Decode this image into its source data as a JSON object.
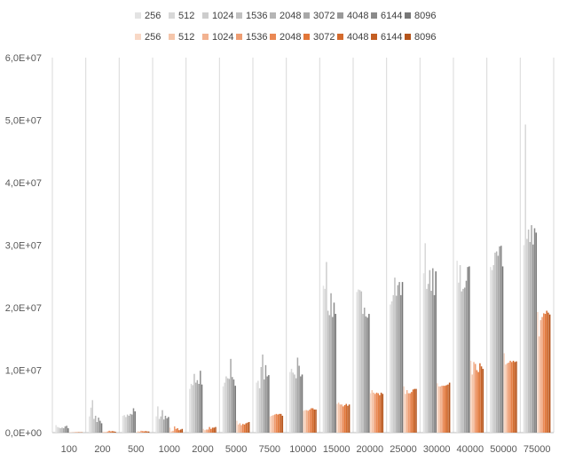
{
  "chart_data": {
    "type": "bar",
    "title": "",
    "xlabel": "",
    "ylabel": "",
    "ylim": [
      0,
      60000000
    ],
    "yticks": [
      0,
      10000000,
      20000000,
      30000000,
      40000000,
      50000000,
      60000000
    ],
    "ytick_labels": [
      "0,0E+00",
      "1,0E+07",
      "2,0E+07",
      "3,0E+07",
      "4,0E+07",
      "5,0E+07",
      "6,0E+07"
    ],
    "grid": "vertical",
    "legend_position": "top",
    "categories": [
      "100",
      "200",
      "500",
      "1000",
      "2000",
      "5000",
      "7500",
      "10000",
      "15000",
      "20000",
      "25000",
      "30000",
      "40000",
      "50000",
      "75000"
    ],
    "series_groups": [
      {
        "colors": [
          "#e3e3e3",
          "#d8d8d8",
          "#cdcdcd",
          "#c1c1c1",
          "#b5b5b5",
          "#a8a8a8",
          "#9a9a9a",
          "#8a8a8a",
          "#777777"
        ],
        "series": [
          {
            "name": "256",
            "values": [
              1200000,
              2600000,
              2700000,
              2600000,
              7000000,
              7400000,
              8000000,
              9700000,
              23500000,
              22500000,
              20500000,
              25500000,
              27500000,
              26500000,
              30000000
            ]
          },
          {
            "name": "512",
            "values": [
              900000,
              4000000,
              2800000,
              4200000,
              7800000,
              8000000,
              8300000,
              10200000,
              23000000,
              22900000,
              21000000,
              30300000,
              24000000,
              26000000,
              49300000
            ]
          },
          {
            "name": "1024",
            "values": [
              800000,
              5200000,
              2500000,
              2200000,
              7600000,
              9000000,
              7100000,
              9600000,
              27300000,
              22800000,
              22000000,
              23000000,
              26800000,
              26800000,
              31000000
            ]
          },
          {
            "name": "1536",
            "values": [
              700000,
              2200000,
              2900000,
              2600000,
              9400000,
              8700000,
              10500000,
              9300000,
              19500000,
              22600000,
              24800000,
              23800000,
              22600000,
              28800000,
              32500000
            ]
          },
          {
            "name": "2048",
            "values": [
              800000,
              2700000,
              2700000,
              3600000,
              8000000,
              8600000,
              12500000,
              8700000,
              18800000,
              19000000,
              21900000,
              26000000,
              23000000,
              29000000,
              30500000
            ]
          },
          {
            "name": "3072",
            "values": [
              700000,
              1700000,
              3000000,
              2100000,
              8400000,
              11800000,
              8500000,
              12000000,
              22300000,
              20000000,
              23600000,
              22700000,
              23200000,
              28300000,
              33200000
            ]
          },
          {
            "name": "4048",
            "values": [
              1000000,
              2400000,
              2900000,
              2700000,
              7800000,
              8900000,
              10800000,
              10700000,
              18500000,
              18600000,
              24100000,
              26300000,
              24300000,
              29800000,
              30100000
            ]
          },
          {
            "name": "6144",
            "values": [
              1100000,
              1900000,
              3900000,
              2300000,
              9900000,
              8500000,
              9000000,
              9000000,
              20800000,
              18400000,
              22000000,
              22000000,
              26500000,
              29900000,
              32700000
            ]
          },
          {
            "name": "8096",
            "values": [
              700000,
              1500000,
              3400000,
              2500000,
              7700000,
              7500000,
              9200000,
              9300000,
              19000000,
              19000000,
              24100000,
              25800000,
              26600000,
              26600000,
              32000000
            ]
          }
        ]
      },
      {
        "colors": [
          "#f8d8c6",
          "#f5c6ab",
          "#f2b290",
          "#ee9d72",
          "#ea8854",
          "#e27638",
          "#d46a2c",
          "#c45e22",
          "#b4541b"
        ],
        "series": [
          {
            "name": "256",
            "values": [
              60000,
              150000,
              120000,
              800000,
              600000,
              1900000,
              2600000,
              3500000,
              4600000,
              6300000,
              7400000,
              7900000,
              11500000,
              12700000,
              19300000
            ]
          },
          {
            "name": "512",
            "values": [
              60000,
              120000,
              200000,
              200000,
              400000,
              1300000,
              2700000,
              3600000,
              4800000,
              6800000,
              6200000,
              7400000,
              9300000,
              10900000,
              15400000
            ]
          },
          {
            "name": "1024",
            "values": [
              40000,
              100000,
              150000,
              300000,
              500000,
              1500000,
              2800000,
              3600000,
              4500000,
              6400000,
              6800000,
              7400000,
              11300000,
              11100000,
              18000000
            ]
          },
          {
            "name": "1536",
            "values": [
              50000,
              180000,
              300000,
              1000000,
              500000,
              1200000,
              2900000,
              3500000,
              4500000,
              6200000,
              6300000,
              7500000,
              11000000,
              11200000,
              18500000
            ]
          },
          {
            "name": "2048",
            "values": [
              70000,
              300000,
              250000,
              600000,
              900000,
              1400000,
              3000000,
              3700000,
              4200000,
              6400000,
              6300000,
              7500000,
              10000000,
              11500000,
              19100000
            ]
          },
          {
            "name": "3072",
            "values": [
              60000,
              200000,
              200000,
              700000,
              600000,
              1300000,
              2900000,
              3900000,
              4400000,
              6300000,
              6500000,
              7500000,
              9700000,
              11300000,
              19000000
            ]
          },
          {
            "name": "4048",
            "values": [
              80000,
              250000,
              250000,
              400000,
              800000,
              1500000,
              3000000,
              3900000,
              4600000,
              6000000,
              6900000,
              7600000,
              11100000,
              11500000,
              19500000
            ]
          },
          {
            "name": "6144",
            "values": [
              50000,
              200000,
              200000,
              500000,
              800000,
              1600000,
              3000000,
              3700000,
              4300000,
              6400000,
              7000000,
              7700000,
              10600000,
              11300000,
              19200000
            ]
          },
          {
            "name": "8096",
            "values": [
              60000,
              150000,
              180000,
              600000,
              900000,
              1700000,
              2700000,
              3700000,
              4500000,
              6200000,
              7000000,
              8000000,
              10200000,
              11400000,
              18900000
            ]
          }
        ]
      }
    ]
  }
}
